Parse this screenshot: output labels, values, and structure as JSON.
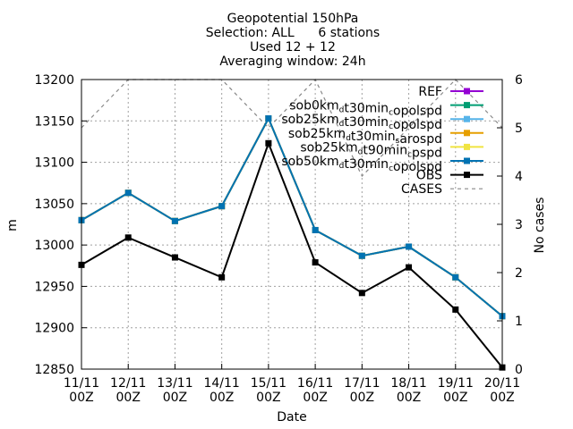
{
  "chart_data": {
    "type": "line",
    "title_lines": [
      "Geopotential 150hPa",
      "Selection: ALL      6 stations",
      "Used 12 + 12",
      "Averaging window: 24h"
    ],
    "xlabel": "Date",
    "ylabel": "m",
    "y2label": "No cases",
    "categories": [
      "11/11 00Z",
      "12/11 00Z",
      "13/11 00Z",
      "14/11 00Z",
      "15/11 00Z",
      "16/11 00Z",
      "17/11 00Z",
      "18/11 00Z",
      "19/11 00Z",
      "20/11 00Z"
    ],
    "category_lines": [
      [
        "11/11",
        "00Z"
      ],
      [
        "12/11",
        "00Z"
      ],
      [
        "13/11",
        "00Z"
      ],
      [
        "14/11",
        "00Z"
      ],
      [
        "15/11",
        "00Z"
      ],
      [
        "16/11",
        "00Z"
      ],
      [
        "17/11",
        "00Z"
      ],
      [
        "18/11",
        "00Z"
      ],
      [
        "19/11",
        "00Z"
      ],
      [
        "20/11",
        "00Z"
      ]
    ],
    "ylim": [
      12850,
      13200
    ],
    "yticks": [
      12850,
      12900,
      12950,
      13000,
      13050,
      13100,
      13150,
      13200
    ],
    "y2lim": [
      0,
      6
    ],
    "y2ticks": [
      0,
      1,
      2,
      3,
      4,
      5,
      6
    ],
    "grid": true,
    "legend_position": "top-right",
    "series": [
      {
        "name": "REF",
        "axis": "y",
        "color": "#9400d3",
        "marker": "square",
        "dash": "",
        "values": [
          13030,
          13063,
          13029,
          13047,
          13153,
          13018,
          12987,
          12998,
          12961,
          12914
        ]
      },
      {
        "name": "sob0km_d t30min_c opolspd",
        "axis": "y",
        "color": "#009e73",
        "marker": "square",
        "dash": "",
        "values": [
          13030,
          13063,
          13029,
          13047,
          13153,
          13018,
          12987,
          12998,
          12961,
          12914
        ]
      },
      {
        "name": "sob25km_d t30min_c opolspd",
        "axis": "y",
        "color": "#56b4e9",
        "marker": "square",
        "dash": "",
        "values": [
          13030,
          13063,
          13029,
          13047,
          13153,
          13018,
          12987,
          12998,
          12961,
          12914
        ]
      },
      {
        "name": "sob25km_d t30min_s arospd",
        "axis": "y",
        "color": "#e69f00",
        "marker": "square",
        "dash": "",
        "values": [
          13030,
          13063,
          13029,
          13047,
          13153,
          13018,
          12987,
          12998,
          12961,
          12914
        ]
      },
      {
        "name": "sob25km_d t90min_c pspd",
        "axis": "y",
        "color": "#f0e442",
        "marker": "square",
        "dash": "",
        "values": [
          13030,
          13063,
          13029,
          13047,
          13153,
          13018,
          12987,
          12998,
          12961,
          12914
        ]
      },
      {
        "name": "sob50km_d t30min_c opolspd",
        "axis": "y",
        "color": "#0072b2",
        "marker": "square",
        "dash": "",
        "values": [
          13030,
          13063,
          13029,
          13047,
          13153,
          13018,
          12987,
          12998,
          12961,
          12914
        ]
      },
      {
        "name": "OBS",
        "axis": "y",
        "color": "#000000",
        "marker": "square",
        "dash": "",
        "values": [
          12976,
          13009,
          12985,
          12961,
          13123,
          12979,
          12942,
          12973,
          12922,
          12852
        ]
      },
      {
        "name": "CASES",
        "axis": "y2",
        "color": "#888888",
        "marker": "none",
        "dash": "4,4",
        "values": [
          5,
          6,
          6,
          6,
          5,
          6,
          4,
          5,
          6,
          5
        ]
      }
    ],
    "legend_labels": [
      [
        {
          "t": "REF"
        }
      ],
      [
        {
          "t": "sob0km"
        },
        {
          "t": "d",
          "sub": true
        },
        {
          "t": "t30min"
        },
        {
          "t": "c",
          "sub": true
        },
        {
          "t": "opolspd"
        }
      ],
      [
        {
          "t": "sob25km"
        },
        {
          "t": "d",
          "sub": true
        },
        {
          "t": "t30min"
        },
        {
          "t": "c",
          "sub": true
        },
        {
          "t": "opolspd"
        }
      ],
      [
        {
          "t": "sob25km"
        },
        {
          "t": "d",
          "sub": true
        },
        {
          "t": "t30min"
        },
        {
          "t": "s",
          "sub": true
        },
        {
          "t": "arospd"
        }
      ],
      [
        {
          "t": "sob25km"
        },
        {
          "t": "d",
          "sub": true
        },
        {
          "t": "t90min"
        },
        {
          "t": "c",
          "sub": true
        },
        {
          "t": "pspd"
        }
      ],
      [
        {
          "t": "sob50km"
        },
        {
          "t": "d",
          "sub": true
        },
        {
          "t": "t30min"
        },
        {
          "t": "c",
          "sub": true
        },
        {
          "t": "opolspd"
        }
      ],
      [
        {
          "t": "OBS"
        }
      ],
      [
        {
          "t": "CASES"
        }
      ]
    ]
  }
}
